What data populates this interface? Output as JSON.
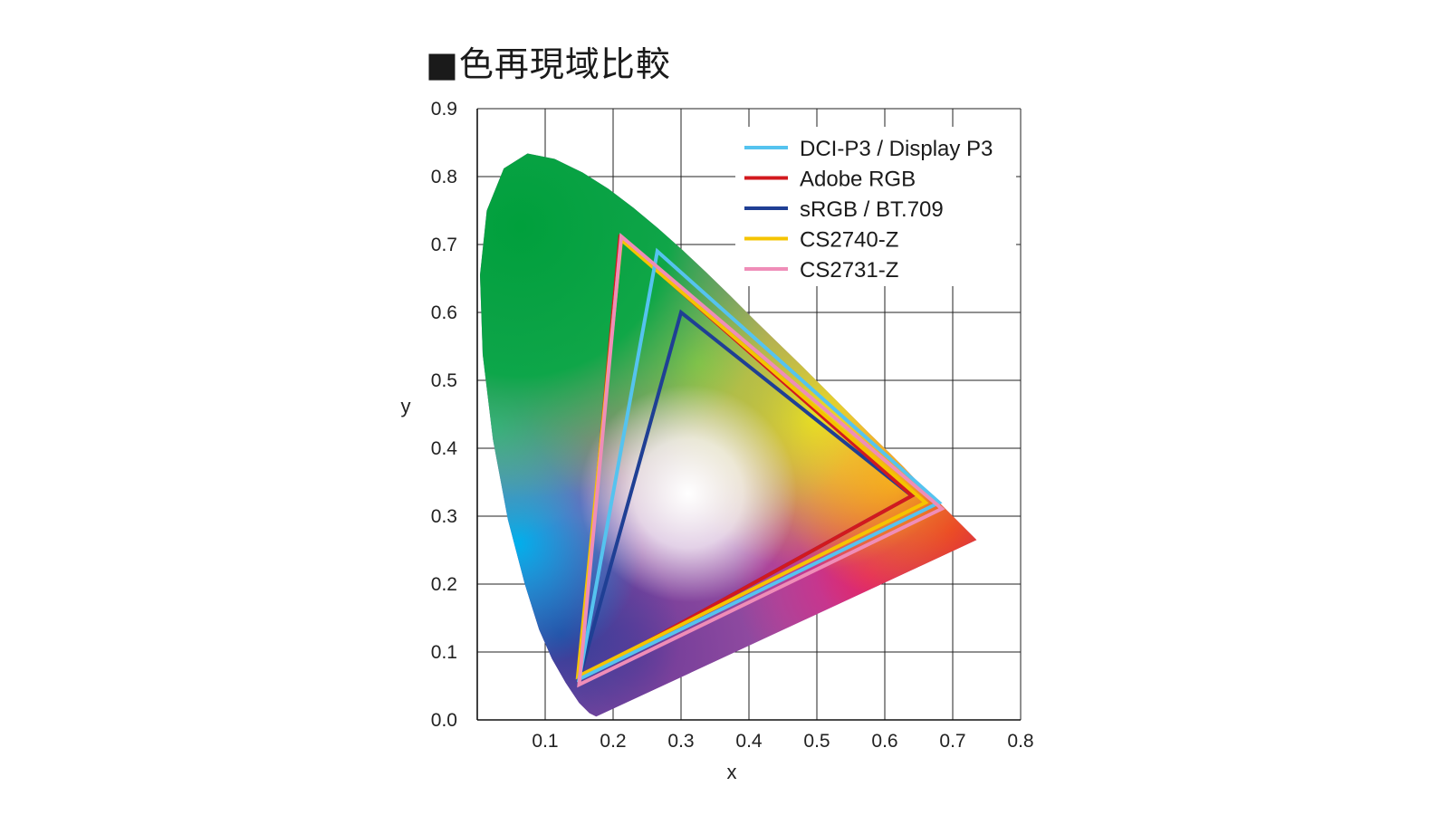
{
  "chart_data": {
    "type": "line",
    "title": "■色再現域比較",
    "xlabel": "x",
    "ylabel": "y",
    "xlim": [
      0,
      0.8
    ],
    "ylim": [
      0,
      0.9
    ],
    "x_ticks": [
      "0.1",
      "0.2",
      "0.3",
      "0.4",
      "0.5",
      "0.6",
      "0.7",
      "0.8"
    ],
    "y_ticks": [
      "0.0",
      "0.1",
      "0.2",
      "0.3",
      "0.4",
      "0.5",
      "0.6",
      "0.7",
      "0.8",
      "0.9"
    ],
    "grid": true,
    "legend_position": "top-right",
    "spectral_locus": [
      [
        0.175,
        0.005
      ],
      [
        0.165,
        0.01
      ],
      [
        0.15,
        0.025
      ],
      [
        0.13,
        0.055
      ],
      [
        0.11,
        0.09
      ],
      [
        0.091,
        0.133
      ],
      [
        0.07,
        0.2
      ],
      [
        0.045,
        0.295
      ],
      [
        0.023,
        0.413
      ],
      [
        0.008,
        0.538
      ],
      [
        0.004,
        0.655
      ],
      [
        0.014,
        0.75
      ],
      [
        0.039,
        0.812
      ],
      [
        0.074,
        0.834
      ],
      [
        0.114,
        0.826
      ],
      [
        0.155,
        0.806
      ],
      [
        0.193,
        0.782
      ],
      [
        0.23,
        0.754
      ],
      [
        0.266,
        0.724
      ],
      [
        0.302,
        0.692
      ],
      [
        0.337,
        0.659
      ],
      [
        0.373,
        0.624
      ],
      [
        0.408,
        0.589
      ],
      [
        0.444,
        0.554
      ],
      [
        0.479,
        0.52
      ],
      [
        0.512,
        0.487
      ],
      [
        0.547,
        0.452
      ],
      [
        0.575,
        0.424
      ],
      [
        0.607,
        0.393
      ],
      [
        0.627,
        0.373
      ],
      [
        0.648,
        0.351
      ],
      [
        0.666,
        0.334
      ],
      [
        0.68,
        0.32
      ],
      [
        0.692,
        0.308
      ],
      [
        0.735,
        0.265
      ]
    ],
    "series": [
      {
        "name": "DCI-P3 / Display P3",
        "color": "#55c3ef",
        "points": [
          [
            0.68,
            0.32
          ],
          [
            0.265,
            0.69
          ],
          [
            0.15,
            0.06
          ]
        ]
      },
      {
        "name": "Adobe RGB",
        "color": "#d2191e",
        "points": [
          [
            0.64,
            0.33
          ],
          [
            0.21,
            0.71
          ],
          [
            0.15,
            0.06
          ]
        ]
      },
      {
        "name": "sRGB / BT.709",
        "color": "#1f3f94",
        "points": [
          [
            0.64,
            0.33
          ],
          [
            0.3,
            0.6
          ],
          [
            0.15,
            0.06
          ]
        ]
      },
      {
        "name": "CS2740-Z",
        "color": "#f5c400",
        "points": [
          [
            0.66,
            0.32
          ],
          [
            0.212,
            0.707
          ],
          [
            0.148,
            0.064
          ]
        ]
      },
      {
        "name": "CS2731-Z",
        "color": "#ef8db8",
        "points": [
          [
            0.684,
            0.311
          ],
          [
            0.212,
            0.712
          ],
          [
            0.15,
            0.052
          ]
        ]
      }
    ]
  }
}
